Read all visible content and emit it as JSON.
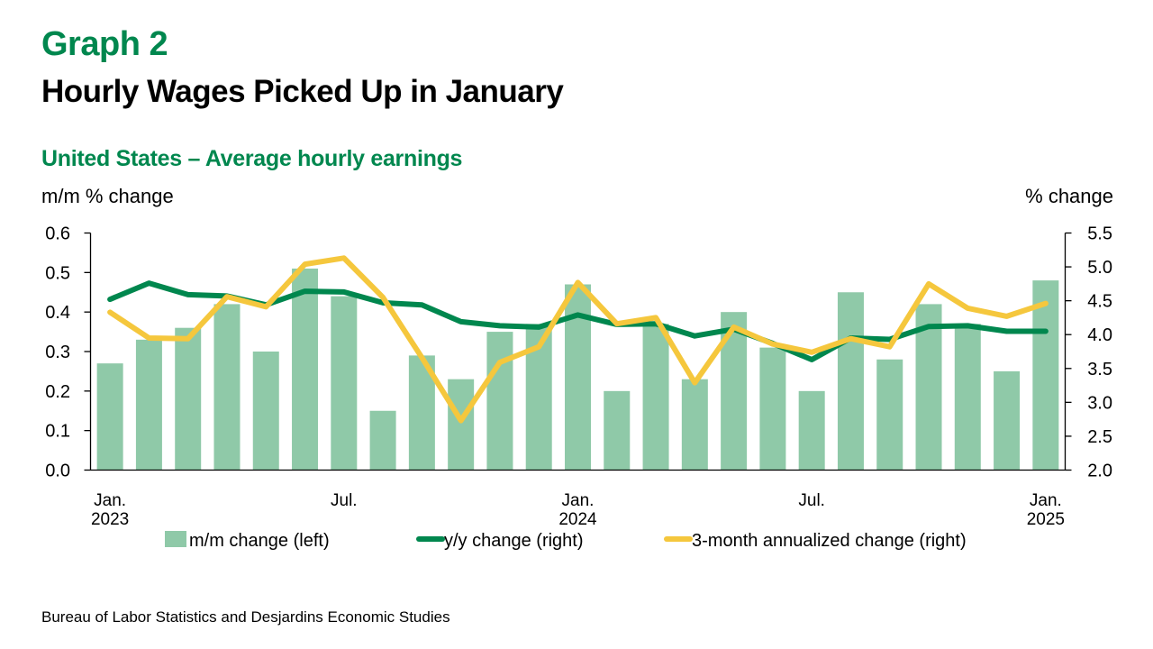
{
  "header": {
    "graph_label": "Graph 2",
    "title": "Hourly Wages Picked Up in January",
    "subtitle": "United States – Average hourly earnings"
  },
  "axes": {
    "left_unit": "m/m % change",
    "right_unit": "% change"
  },
  "source": "Bureau of Labor Statistics and Desjardins Economic Studies",
  "colors": {
    "bars": "#8FC9A8",
    "yy_line": "#00874E",
    "three_month_line": "#F5C73D",
    "brand_green": "#00874E"
  },
  "chart_data": {
    "type": "bar+line",
    "title": "United States – Average hourly earnings",
    "x": [
      "2023-01",
      "2023-02",
      "2023-03",
      "2023-04",
      "2023-05",
      "2023-06",
      "2023-07",
      "2023-08",
      "2023-09",
      "2023-10",
      "2023-11",
      "2023-12",
      "2024-01",
      "2024-02",
      "2024-03",
      "2024-04",
      "2024-05",
      "2024-06",
      "2024-07",
      "2024-08",
      "2024-09",
      "2024-10",
      "2024-11",
      "2024-12",
      "2025-01"
    ],
    "x_tick_labels": [
      {
        "index": 0,
        "line1": "Jan.",
        "line2": "2023"
      },
      {
        "index": 6,
        "line1": "Jul.",
        "line2": ""
      },
      {
        "index": 12,
        "line1": "Jan.",
        "line2": "2024"
      },
      {
        "index": 18,
        "line1": "Jul.",
        "line2": ""
      },
      {
        "index": 24,
        "line1": "Jan.",
        "line2": "2025"
      }
    ],
    "ylabel_left": "m/m % change",
    "ylabel_right": "% change",
    "ylim_left": [
      0.0,
      0.6
    ],
    "yticks_left": [
      "0.0",
      "0.1",
      "0.2",
      "0.3",
      "0.4",
      "0.5",
      "0.6"
    ],
    "ylim_right": [
      2.0,
      5.5
    ],
    "yticks_right": [
      "2.0",
      "2.5",
      "3.0",
      "3.5",
      "4.0",
      "4.5",
      "5.0",
      "5.5"
    ],
    "grid": false,
    "legend_position": "bottom",
    "series": [
      {
        "name": "m/m change (left)",
        "type": "bar",
        "axis": "left",
        "values": [
          0.27,
          0.33,
          0.36,
          0.42,
          0.3,
          0.51,
          0.44,
          0.15,
          0.29,
          0.23,
          0.35,
          0.37,
          0.47,
          0.2,
          0.37,
          0.23,
          0.4,
          0.31,
          0.2,
          0.45,
          0.28,
          0.42,
          0.37,
          0.25,
          0.48
        ]
      },
      {
        "name": "y/y change (right)",
        "type": "line",
        "axis": "right",
        "values": [
          4.52,
          4.76,
          4.59,
          4.57,
          4.44,
          4.64,
          4.63,
          4.47,
          4.44,
          4.19,
          4.13,
          4.11,
          4.29,
          4.15,
          4.16,
          3.98,
          4.08,
          3.87,
          3.63,
          3.95,
          3.93,
          4.12,
          4.13,
          4.05,
          4.05
        ]
      },
      {
        "name": "3-month annualized change (right)",
        "type": "line",
        "axis": "right",
        "values": [
          4.33,
          3.95,
          3.94,
          4.56,
          4.41,
          5.04,
          5.13,
          4.55,
          3.66,
          2.73,
          3.59,
          3.82,
          4.77,
          4.16,
          4.25,
          3.29,
          4.11,
          3.86,
          3.74,
          3.94,
          3.82,
          4.75,
          4.39,
          4.27,
          4.46
        ]
      }
    ]
  }
}
